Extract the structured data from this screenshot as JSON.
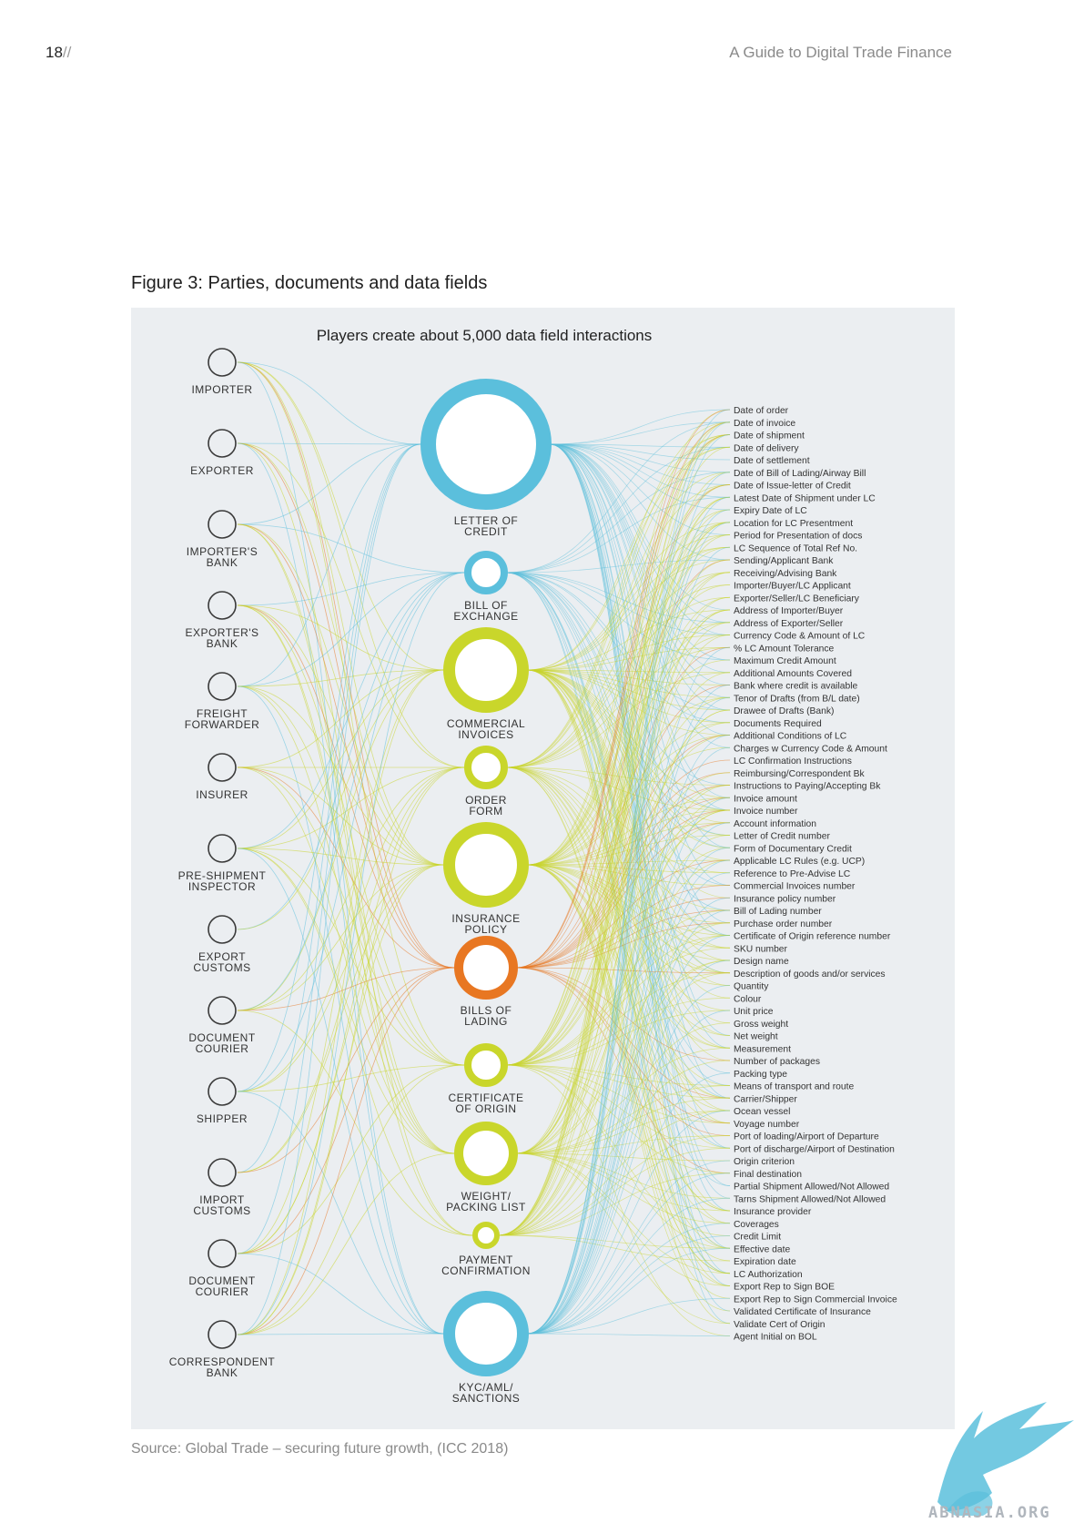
{
  "header": {
    "page_number": "18",
    "page_number_suffix": "//",
    "running_title": "A Guide to Digital Trade Finance"
  },
  "figure": {
    "title": "Figure 3: Parties, documents and data fields",
    "subtitle": "Players create about 5,000 data field interactions",
    "source": "Source: Global Trade – securing future growth, (ICC 2018)"
  },
  "colors": {
    "panel_bg": "#ebeef1",
    "blue": "#5bbfdc",
    "lime": "#c9d62b",
    "orange": "#e87722",
    "party_ring": "#3a3a3a",
    "text": "#333333"
  },
  "parties": [
    [
      "IMPORTER"
    ],
    [
      "EXPORTER"
    ],
    [
      "IMPORTER'S",
      "BANK"
    ],
    [
      "EXPORTER'S",
      "BANK"
    ],
    [
      "FREIGHT",
      "FORWARDER"
    ],
    [
      "INSURER"
    ],
    [
      "PRE-SHIPMENT",
      "INSPECTOR"
    ],
    [
      "EXPORT",
      "CUSTOMS"
    ],
    [
      "DOCUMENT",
      "COURIER"
    ],
    [
      "SHIPPER"
    ],
    [
      "IMPORT",
      "CUSTOMS"
    ],
    [
      "DOCUMENT",
      "COURIER"
    ],
    [
      "CORRESPONDENT",
      "BANK"
    ]
  ],
  "documents": [
    {
      "label": [
        "LETTER OF",
        "CREDIT"
      ],
      "color": "blue",
      "size": "xl"
    },
    {
      "label": [
        "BILL OF",
        "EXCHANGE"
      ],
      "color": "blue",
      "size": "s"
    },
    {
      "label": [
        "COMMERCIAL",
        "INVOICES"
      ],
      "color": "lime",
      "size": "l"
    },
    {
      "label": [
        "ORDER",
        "FORM"
      ],
      "color": "lime",
      "size": "s"
    },
    {
      "label": [
        "INSURANCE",
        "POLICY"
      ],
      "color": "lime",
      "size": "l"
    },
    {
      "label": [
        "BILLS OF",
        "LADING"
      ],
      "color": "orange",
      "size": "m"
    },
    {
      "label": [
        "CERTIFICATE",
        "OF ORIGIN"
      ],
      "color": "lime",
      "size": "s"
    },
    {
      "label": [
        "WEIGHT/",
        "PACKING LIST"
      ],
      "color": "lime",
      "size": "m"
    },
    {
      "label": [
        "PAYMENT",
        "CONFIRMATION"
      ],
      "color": "lime",
      "size": "xs"
    },
    {
      "label": [
        "KYC/AML/",
        "SANCTIONS"
      ],
      "color": "blue",
      "size": "l"
    }
  ],
  "data_fields": [
    "Date of order",
    "Date of invoice",
    "Date of shipment",
    "Date of delivery",
    "Date of settlement",
    "Date of Bill of Lading/Airway Bill",
    "Date of Issue-letter of Credit",
    "Latest Date of Shipment under LC",
    "Expiry Date of LC",
    "Location for LC Presentment",
    "Period for Presentation of docs",
    "LC Sequence of Total Ref No.",
    "Sending/Applicant Bank",
    "Receiving/Advising Bank",
    "Importer/Buyer/LC Applicant",
    "Exporter/Seller/LC Beneficiary",
    "Address of Importer/Buyer",
    "Address of Exporter/Seller",
    "Currency Code & Amount of LC",
    "% LC Amount Tolerance",
    "Maximum Credit Amount",
    "Additional Amounts Covered",
    "Bank where credit is available",
    "Tenor of Drafts (from B/L date)",
    "Drawee of Drafts (Bank)",
    "Documents Required",
    "Additional Conditions of LC",
    "Charges w Currency Code & Amount",
    "LC Confirmation Instructions",
    "Reimbursing/Correspondent Bk",
    "Instructions to Paying/Accepting Bk",
    "Invoice amount",
    "Invoice number",
    "Account information",
    "Letter of Credit number",
    "Form of Documentary Credit",
    "Applicable LC Rules (e.g. UCP)",
    "Reference to Pre-Advise LC",
    "Commercial Invoices number",
    "Insurance policy number",
    "Bill of Lading number",
    "Purchase order number",
    "Certificate of Origin reference number",
    "SKU number",
    "Design name",
    "Description of goods and/or services",
    "Quantity",
    "Colour",
    "Unit price",
    "Gross weight",
    "Net weight",
    "Measurement",
    "Number of packages",
    "Packing type",
    "Means of transport and route",
    "Carrier/Shipper",
    "Ocean vessel",
    "Voyage number",
    "Port of loading/Airport of Departure",
    "Port of discharge/Airport of Destination",
    "Origin criterion",
    "Final destination",
    "Partial Shipment Allowed/Not Allowed",
    "Tarns Shipment Allowed/Not Allowed",
    "Insurance provider",
    "Coverages",
    "Credit Limit",
    "Effective date",
    "Expiration date",
    "LC Authorization",
    "Export Rep to Sign BOE",
    "Export Rep to Sign Commercial Invoice",
    "Validated Certificate of Insurance",
    "Validate Cert of Origin",
    "Agent Initial on BOL"
  ],
  "watermark": {
    "text": "ABNASIA.ORG",
    "logo_icon": "griffin-logo-icon"
  }
}
